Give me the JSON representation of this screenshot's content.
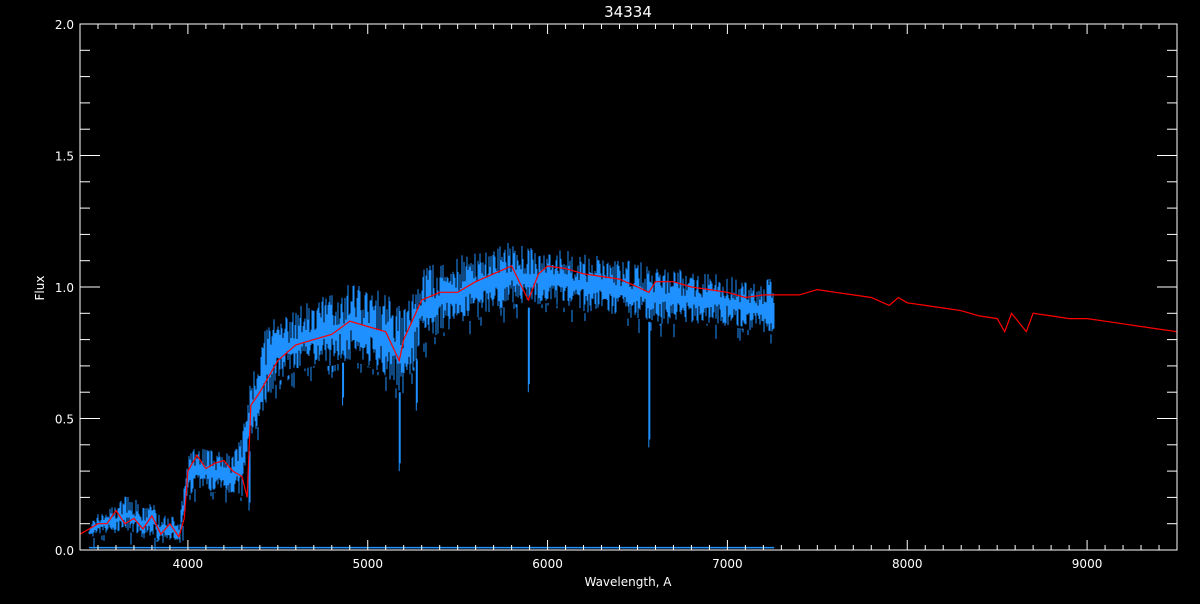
{
  "chart_data": {
    "type": "line",
    "title": "34334",
    "xlabel": "Wavelength, A",
    "ylabel": "Flux",
    "xlim": [
      3400,
      9500
    ],
    "ylim": [
      0,
      2.0
    ],
    "xticks": [
      4000,
      5000,
      6000,
      7000,
      8000,
      9000
    ],
    "xtick_labels": [
      "4000",
      "5000",
      "6000",
      "7000",
      "8000",
      "9000"
    ],
    "yticks": [
      0,
      0.5,
      1.0,
      1.5,
      2.0
    ],
    "ytick_labels": [
      "0.0",
      "0.5",
      "1.0",
      "1.5",
      "2.0"
    ],
    "grid": false,
    "colors": {
      "background": "#000000",
      "axes": "#ffffff",
      "observed": "#1e90ff",
      "model": "#ff0000",
      "error": "#1e90ff"
    },
    "series": [
      {
        "role": "observed",
        "x": [
          3450,
          3500,
          3550,
          3600,
          3650,
          3700,
          3750,
          3800,
          3850,
          3900,
          3950,
          4000,
          4050,
          4100,
          4150,
          4200,
          4250,
          4300,
          4350,
          4400,
          4450,
          4500,
          4600,
          4700,
          4800,
          4900,
          5000,
          5100,
          5200,
          5300,
          5400,
          5500,
          5600,
          5700,
          5800,
          5900,
          6000,
          6100,
          6200,
          6300,
          6400,
          6500,
          6600,
          6700,
          6800,
          6900,
          7000,
          7100,
          7200,
          7260
        ],
        "high": [
          0.1,
          0.14,
          0.16,
          0.17,
          0.21,
          0.2,
          0.16,
          0.2,
          0.12,
          0.15,
          0.1,
          0.36,
          0.4,
          0.4,
          0.37,
          0.38,
          0.37,
          0.45,
          0.65,
          0.78,
          0.88,
          0.88,
          0.92,
          0.95,
          0.98,
          1.02,
          1.0,
          0.98,
          0.92,
          1.08,
          1.1,
          1.12,
          1.14,
          1.16,
          1.17,
          1.15,
          1.15,
          1.14,
          1.13,
          1.12,
          1.11,
          1.1,
          1.08,
          1.08,
          1.06,
          1.06,
          1.05,
          1.03,
          1.02,
          1.05
        ],
        "low": [
          0.04,
          0.05,
          0.06,
          0.06,
          0.08,
          0.06,
          0.03,
          0.06,
          0.02,
          0.04,
          0.0,
          0.2,
          0.24,
          0.22,
          0.22,
          0.24,
          0.2,
          0.2,
          0.42,
          0.48,
          0.58,
          0.64,
          0.68,
          0.7,
          0.7,
          0.72,
          0.7,
          0.66,
          0.58,
          0.78,
          0.82,
          0.85,
          0.88,
          0.9,
          0.94,
          0.92,
          0.94,
          0.92,
          0.9,
          0.9,
          0.88,
          0.88,
          0.86,
          0.86,
          0.86,
          0.86,
          0.85,
          0.84,
          0.82,
          0.82
        ],
        "absorption_lines": [
          {
            "wavelength": 4340,
            "flux": 0.15
          },
          {
            "wavelength": 4860,
            "flux": 0.55
          },
          {
            "wavelength": 5175,
            "flux": 0.3
          },
          {
            "wavelength": 5270,
            "flux": 0.53
          },
          {
            "wavelength": 5893,
            "flux": 0.6
          },
          {
            "wavelength": 6563,
            "flux": 0.39
          }
        ]
      },
      {
        "role": "model",
        "x": [
          3400,
          3450,
          3500,
          3550,
          3600,
          3650,
          3700,
          3750,
          3800,
          3850,
          3900,
          3950,
          3980,
          4000,
          4050,
          4100,
          4150,
          4200,
          4250,
          4300,
          4330,
          4350,
          4400,
          4500,
          4600,
          4700,
          4800,
          4900,
          5000,
          5100,
          5175,
          5200,
          5300,
          5400,
          5500,
          5600,
          5700,
          5800,
          5893,
          5950,
          6000,
          6100,
          6200,
          6300,
          6400,
          6500,
          6563,
          6600,
          6700,
          6800,
          6900,
          7000,
          7100,
          7200,
          7300,
          7400,
          7500,
          7600,
          7700,
          7800,
          7900,
          7950,
          8000,
          8100,
          8200,
          8300,
          8400,
          8500,
          8542,
          8580,
          8662,
          8700,
          8800,
          8900,
          9000,
          9100,
          9200,
          9300,
          9400,
          9500
        ],
        "y": [
          0.06,
          0.08,
          0.1,
          0.1,
          0.15,
          0.1,
          0.12,
          0.08,
          0.13,
          0.06,
          0.1,
          0.05,
          0.12,
          0.3,
          0.36,
          0.31,
          0.33,
          0.34,
          0.3,
          0.28,
          0.2,
          0.55,
          0.6,
          0.72,
          0.78,
          0.8,
          0.82,
          0.87,
          0.85,
          0.83,
          0.72,
          0.8,
          0.95,
          0.98,
          0.98,
          1.02,
          1.05,
          1.08,
          0.95,
          1.05,
          1.08,
          1.07,
          1.05,
          1.04,
          1.03,
          1.0,
          0.98,
          1.02,
          1.02,
          1.0,
          0.99,
          0.98,
          0.96,
          0.97,
          0.97,
          0.97,
          0.99,
          0.98,
          0.97,
          0.96,
          0.93,
          0.96,
          0.94,
          0.93,
          0.92,
          0.91,
          0.89,
          0.88,
          0.83,
          0.9,
          0.83,
          0.9,
          0.89,
          0.88,
          0.88,
          0.87,
          0.86,
          0.85,
          0.84,
          0.83
        ]
      },
      {
        "role": "error",
        "x": [
          3450,
          7260
        ],
        "y": [
          0.005,
          0.005
        ]
      }
    ]
  }
}
